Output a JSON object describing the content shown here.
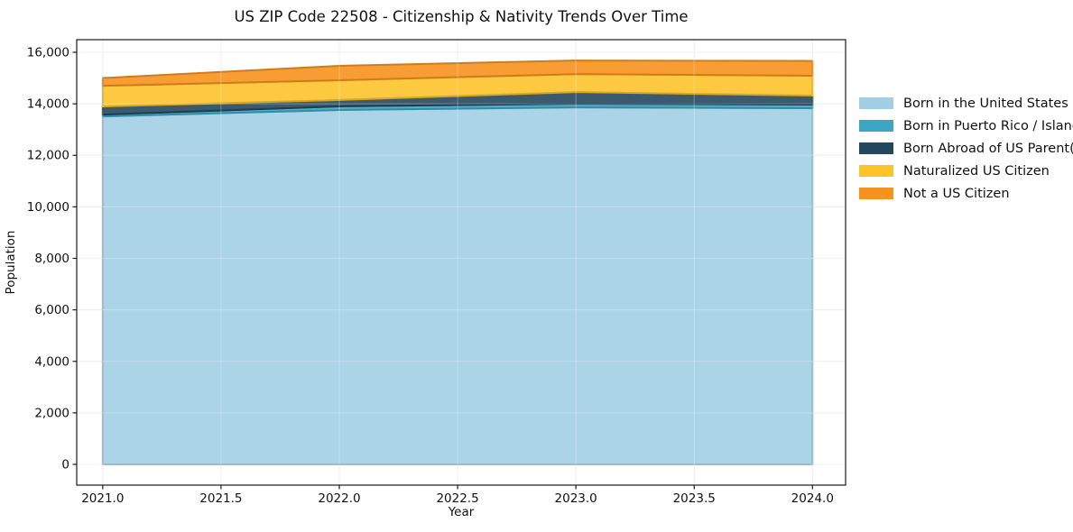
{
  "page": {
    "background": "#ffffff"
  },
  "chart_data": {
    "type": "area",
    "stacked": true,
    "title": "US ZIP Code 22508 - Citizenship & Nativity Trends Over Time",
    "xlabel": "Year",
    "ylabel": "Population",
    "x": [
      2021,
      2022,
      2023,
      2024
    ],
    "series": [
      {
        "name": "Born in the United States",
        "color": "#a2cfe4",
        "values": [
          13510,
          13760,
          13860,
          13830
        ]
      },
      {
        "name": "Born in Puerto Rico / Islands",
        "color": "#3ba7c4",
        "values": [
          70,
          140,
          140,
          140
        ]
      },
      {
        "name": "Born Abroad of US Parent(s)",
        "color": "#26485e",
        "values": [
          315,
          245,
          455,
          350
        ]
      },
      {
        "name": "Naturalized US Citizen",
        "color": "#fcc32b",
        "values": [
          805,
          770,
          700,
          770
        ]
      },
      {
        "name": "Not a US Citizen",
        "color": "#f6921e",
        "values": [
          300,
          560,
          525,
          575
        ]
      }
    ],
    "totals": [
      15000,
      15475,
      15680,
      15665
    ],
    "xlim": [
      2020.89,
      2024.14
    ],
    "ylim": [
      -805,
      16490
    ],
    "x_ticks": [
      2021.0,
      2021.5,
      2022.0,
      2022.5,
      2023.0,
      2023.5,
      2024.0
    ],
    "x_tick_labels": [
      "2021.0",
      "2021.5",
      "2022.0",
      "2022.5",
      "2023.0",
      "2023.5",
      "2024.0"
    ],
    "y_ticks": [
      0,
      2000,
      4000,
      6000,
      8000,
      10000,
      12000,
      14000,
      16000
    ],
    "y_tick_labels": [
      "0",
      "2,000",
      "4,000",
      "6,000",
      "8,000",
      "10,000",
      "12,000",
      "14,000",
      "16,000"
    ],
    "grid": true,
    "grid_color": "#e4e8f0",
    "spine_color": "#1a1a1a",
    "legend_position": "right"
  }
}
